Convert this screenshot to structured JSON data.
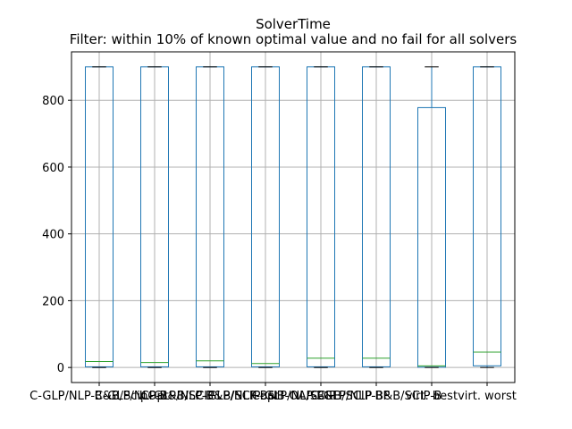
{
  "chart_data": {
    "type": "boxplot",
    "title": "SolverTime",
    "subtitle": "Filter: within 10% of known optimal value and no fail for all solvers",
    "xlabel": "",
    "ylabel": "",
    "ylim": [
      -45,
      945
    ],
    "yticks": [
      0,
      200,
      400,
      600,
      800
    ],
    "grid": true,
    "colors": {
      "box": "#1f77b4",
      "median": "#2ca02c",
      "whisker_cap": "#000000",
      "grid": "#b0b0b0"
    },
    "categories": [
      "C-GLP/NLP-B&B/ScipOpt",
      "C-GLP/NLP-B&B/SCIP",
      "C-GLP/NLP-B&B/SCIPopt",
      "C-GLP/NLP-B&B-OA/SCIP",
      "C-GLP/NLP-B&B/SCIP-BP",
      "C-GLP/NLP-B&B/SCIP-B",
      "virt. best",
      "virt. worst"
    ],
    "boxes": [
      {
        "whislo": 0,
        "q1": 2,
        "med": 18,
        "q3": 900,
        "whishi": 900
      },
      {
        "whislo": 0,
        "q1": 2,
        "med": 15,
        "q3": 900,
        "whishi": 900
      },
      {
        "whislo": 0,
        "q1": 2,
        "med": 20,
        "q3": 900,
        "whishi": 900
      },
      {
        "whislo": 0,
        "q1": 2,
        "med": 12,
        "q3": 900,
        "whishi": 900
      },
      {
        "whislo": 0,
        "q1": 2,
        "med": 28,
        "q3": 900,
        "whishi": 900
      },
      {
        "whislo": 0,
        "q1": 2,
        "med": 28,
        "q3": 900,
        "whishi": 900
      },
      {
        "whislo": 0,
        "q1": 1,
        "med": 5,
        "q3": 778,
        "whishi": 900
      },
      {
        "whislo": 0,
        "q1": 5,
        "med": 46,
        "q3": 900,
        "whishi": 900
      }
    ]
  }
}
